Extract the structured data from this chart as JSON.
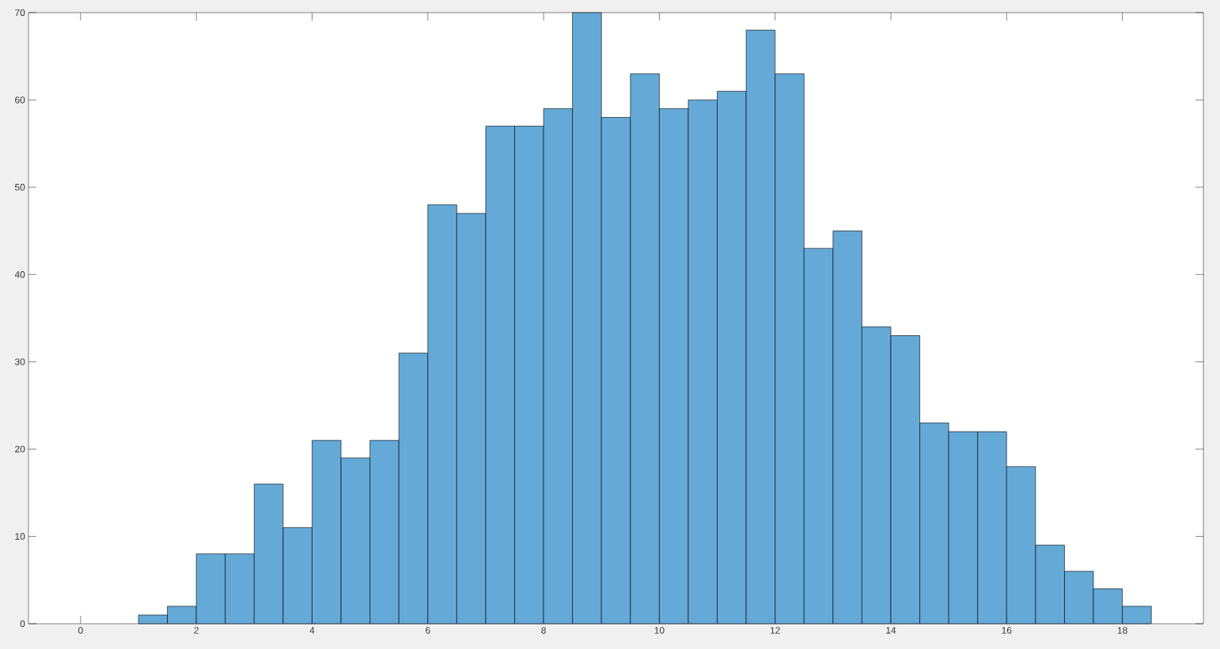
{
  "chart_data": {
    "type": "histogram",
    "color": "#65a9d7",
    "bins": [
      1,
      1.5,
      2,
      2.5,
      3,
      3.5,
      4,
      4.5,
      5,
      5.5,
      6,
      6.5,
      7,
      7.5,
      8,
      8.5,
      9,
      9.5,
      10,
      10.5,
      11,
      11.5,
      12,
      12.5,
      13,
      13.5,
      14,
      14.5,
      15,
      15.5,
      16,
      16.5,
      17,
      17.5,
      18,
      18.5
    ],
    "values": [
      1,
      2,
      8,
      8,
      16,
      11,
      21,
      19,
      21,
      31,
      48,
      47,
      57,
      57,
      59,
      70,
      58,
      63,
      59,
      60,
      61,
      68,
      63,
      43,
      45,
      34,
      33,
      23,
      22,
      22,
      18,
      9,
      6,
      4,
      2
    ],
    "xlim": [
      -0.9,
      19.4
    ],
    "ylim": [
      0,
      70
    ],
    "xticks": [
      0,
      2,
      4,
      6,
      8,
      10,
      12,
      14,
      16,
      18
    ],
    "yticks": [
      0,
      10,
      20,
      30,
      40,
      50,
      60,
      70
    ]
  }
}
